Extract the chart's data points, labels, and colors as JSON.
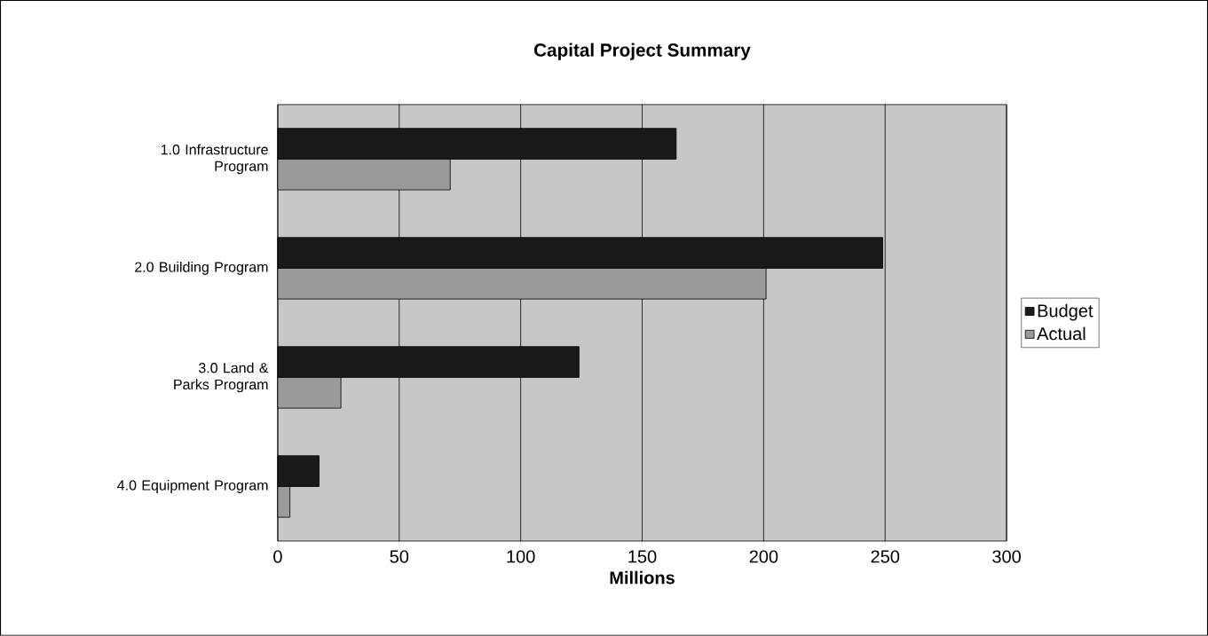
{
  "chart_data": {
    "type": "bar",
    "orientation": "horizontal",
    "title": "Capital Project Summary",
    "xlabel": "Millions",
    "categories": [
      "1.0 Infrastructure Program",
      "2.0 Building Program",
      "3.0 Land & Parks Program",
      "4.0 Equipment Program"
    ],
    "series": [
      {
        "name": "Budget",
        "color": "#1a1a1a",
        "values": [
          164,
          249,
          124,
          17
        ]
      },
      {
        "name": "Actual",
        "color": "#9a9a9a",
        "values": [
          71,
          201,
          26,
          5
        ]
      }
    ],
    "xlim": [
      0,
      300
    ],
    "xticks": [
      0,
      50,
      100,
      150,
      200,
      250,
      300
    ],
    "grid": "x",
    "legend": "right"
  }
}
